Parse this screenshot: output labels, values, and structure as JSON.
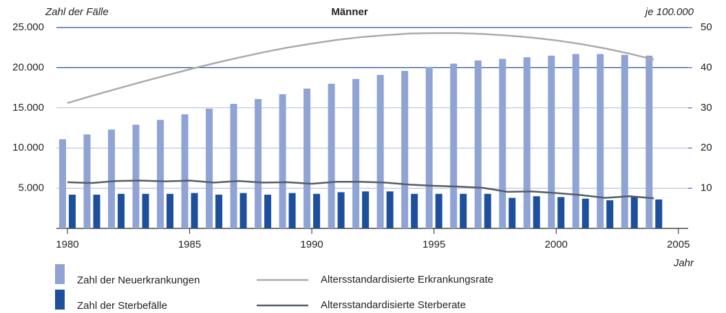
{
  "chart_data": {
    "type": "bar",
    "title": "Männer",
    "ylabel": "Zahl der Fälle",
    "y2label": "je 100.000",
    "xlabel": "Jahr",
    "x": [
      1980,
      1981,
      1982,
      1983,
      1984,
      1985,
      1986,
      1987,
      1988,
      1989,
      1990,
      1991,
      1992,
      1993,
      1994,
      1995,
      1996,
      1997,
      1998,
      1999,
      2000,
      2001,
      2002,
      2003,
      2004
    ],
    "xlim": [
      1979.55,
      2005.4
    ],
    "xticks": [
      1980,
      1985,
      1990,
      1995,
      2000,
      2005
    ],
    "ylim": [
      0,
      25000
    ],
    "yticks": [
      {
        "value": 5000,
        "label": "5.000"
      },
      {
        "value": 10000,
        "label": "10.000"
      },
      {
        "value": 15000,
        "label": "15.000"
      },
      {
        "value": 20000,
        "label": "20.000"
      },
      {
        "value": 25000,
        "label": "25.000"
      }
    ],
    "y2lim": [
      0,
      50
    ],
    "y2ticks": [
      10,
      20,
      30,
      40,
      50
    ],
    "grid": true,
    "series": [
      {
        "name": "Zahl der Neuerkrankungen",
        "type": "bar",
        "color": "#8fa3d4",
        "values": [
          11100,
          11700,
          12300,
          12900,
          13500,
          14200,
          14900,
          15500,
          16100,
          16700,
          17400,
          18000,
          18600,
          19100,
          19600,
          20100,
          20500,
          20900,
          21100,
          21300,
          21500,
          21700,
          21700,
          21600,
          21500
        ]
      },
      {
        "name": "Zahl der Sterbefälle",
        "type": "bar",
        "color": "#1d4f9c",
        "values": [
          4200,
          4200,
          4300,
          4300,
          4300,
          4400,
          4200,
          4400,
          4200,
          4400,
          4300,
          4500,
          4600,
          4600,
          4300,
          4300,
          4300,
          4300,
          3800,
          4000,
          3900,
          3700,
          3500,
          3900,
          3600
        ]
      },
      {
        "name": "Altersstandardisierte Erkrankungsrate",
        "type": "line",
        "axis": "y2",
        "color": "#aaaaaa",
        "values": [
          31.2,
          33.0,
          34.7,
          36.4,
          38.0,
          39.6,
          41.1,
          42.5,
          43.8,
          45.0,
          46.0,
          46.9,
          47.6,
          48.1,
          48.5,
          48.6,
          48.6,
          48.4,
          48.0,
          47.5,
          46.8,
          45.9,
          44.8,
          43.5,
          42.0
        ]
      },
      {
        "name": "Altersstandardisierte Sterberate",
        "type": "line",
        "axis": "y2",
        "color": "#555b66",
        "values": [
          11.5,
          11.3,
          11.8,
          11.9,
          11.7,
          11.9,
          11.4,
          11.8,
          11.4,
          11.5,
          11.1,
          11.6,
          11.6,
          11.4,
          10.9,
          10.6,
          10.4,
          10.1,
          9.1,
          9.2,
          8.8,
          8.3,
          7.6,
          8.0,
          7.5
        ]
      }
    ]
  }
}
